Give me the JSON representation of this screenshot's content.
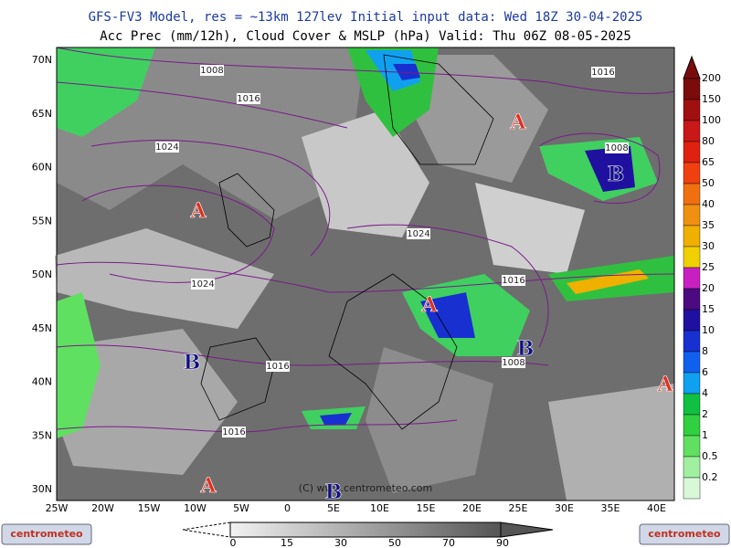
{
  "header": {
    "line1": "GFS-FV3 Model, res = ~13km 127lev    Initial input data: Wed 18Z 30-04-2025",
    "line2": "Acc Prec (mm/12h), Cloud Cover & MSLP (hPa)  Valid: Thu 06Z 08-05-2025"
  },
  "lat_labels": [
    "70N",
    "65N",
    "60N",
    "55N",
    "50N",
    "45N",
    "40N",
    "35N",
    "30N"
  ],
  "lon_labels": [
    "25W",
    "20W",
    "15W",
    "10W",
    "5W",
    "0",
    "5E",
    "10E",
    "15E",
    "20E",
    "25E",
    "30E",
    "35E",
    "40E"
  ],
  "isobars": [
    "1008",
    "1016",
    "1016",
    "1024",
    "1008",
    "1024",
    "1024",
    "1016",
    "1016",
    "1008",
    "1016"
  ],
  "pressure_centers": [
    "A",
    "A",
    "A",
    "A",
    "A",
    "B",
    "B",
    "B",
    "B"
  ],
  "precip_scale": {
    "labels": [
      "200",
      "150",
      "100",
      "80",
      "65",
      "50",
      "40",
      "35",
      "30",
      "25",
      "20",
      "15",
      "10",
      "8",
      "6",
      "4",
      "2",
      "1",
      "0.5",
      "0.2"
    ],
    "colors": [
      "#7a0c0c",
      "#a01010",
      "#c81818",
      "#e02010",
      "#f04010",
      "#f07010",
      "#f09010",
      "#f0b000",
      "#f0d000",
      "#c820c0",
      "#4a0a80",
      "#2010a0",
      "#1830d0",
      "#1060f0",
      "#10a0f0",
      "#10c040",
      "#30d040",
      "#60e060",
      "#a0f0a0",
      "#d8f8d8"
    ]
  },
  "cloud_scale": {
    "labels": [
      "0",
      "15",
      "30",
      "50",
      "70",
      "90"
    ]
  },
  "copyright": "(C) www.centrometeo.com",
  "logos": [
    "centrometeo",
    "centrometeo"
  ]
}
